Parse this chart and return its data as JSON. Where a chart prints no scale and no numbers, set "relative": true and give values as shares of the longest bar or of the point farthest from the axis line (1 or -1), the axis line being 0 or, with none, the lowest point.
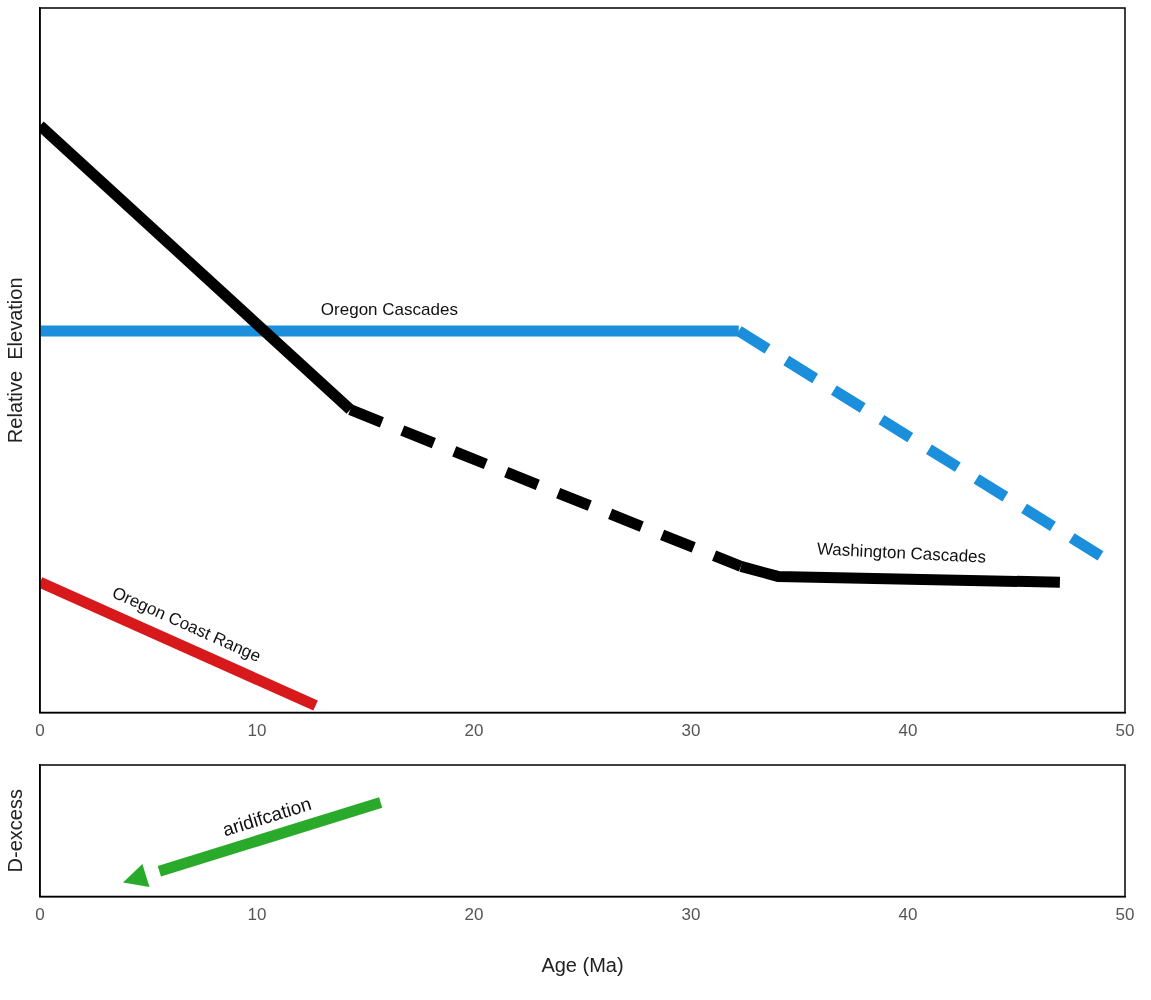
{
  "chart_data": [
    {
      "type": "line",
      "relative": true,
      "ylabel": "Relative  Elevation",
      "xlim": [
        0,
        50
      ],
      "xticks": [
        0,
        10,
        20,
        30,
        40,
        50
      ],
      "grid": false,
      "legend": false,
      "marker": "none",
      "series": [
        {
          "color": "#000000",
          "line_style": "solid",
          "x": [
            0,
            14.3
          ],
          "values": [
            1.0,
            0.516
          ]
        },
        {
          "color": "#000000",
          "line_style": "dashed",
          "x": [
            14.3,
            32.3
          ],
          "values": [
            0.516,
            0.249
          ]
        },
        {
          "name": "Washington Cascades",
          "color": "#000000",
          "line_style": "solid",
          "x": [
            32.3,
            34,
            47
          ],
          "values": [
            0.249,
            0.232,
            0.222
          ]
        },
        {
          "name": "Oregon Cascades",
          "color": "#1b8fdb",
          "line_style": "solid",
          "x": [
            0,
            32.2
          ],
          "values": [
            0.65,
            0.65
          ]
        },
        {
          "color": "#1b8fdb",
          "line_style": "dashed",
          "x": [
            32.2,
            49.3
          ],
          "values": [
            0.65,
            0.257
          ]
        },
        {
          "name": "Oregon Coast Range",
          "color": "#d7191c",
          "line_style": "solid",
          "x": [
            0,
            12.7
          ],
          "values": [
            0.222,
            0.012
          ]
        }
      ]
    },
    {
      "type": "line",
      "relative": true,
      "ylabel": "D-excess",
      "xlabel": "Age (Ma)",
      "xlim": [
        0,
        50
      ],
      "xticks": [
        0,
        10,
        20,
        30,
        40,
        50
      ],
      "grid": false,
      "legend": false,
      "marker": "none",
      "annotations": [
        "aridifcation"
      ],
      "series": [
        {
          "color": "#2aaa2a",
          "line_style": "solid",
          "x": [
            15.7,
            5.5
          ],
          "values": [
            1,
            0.27
          ]
        }
      ]
    }
  ]
}
